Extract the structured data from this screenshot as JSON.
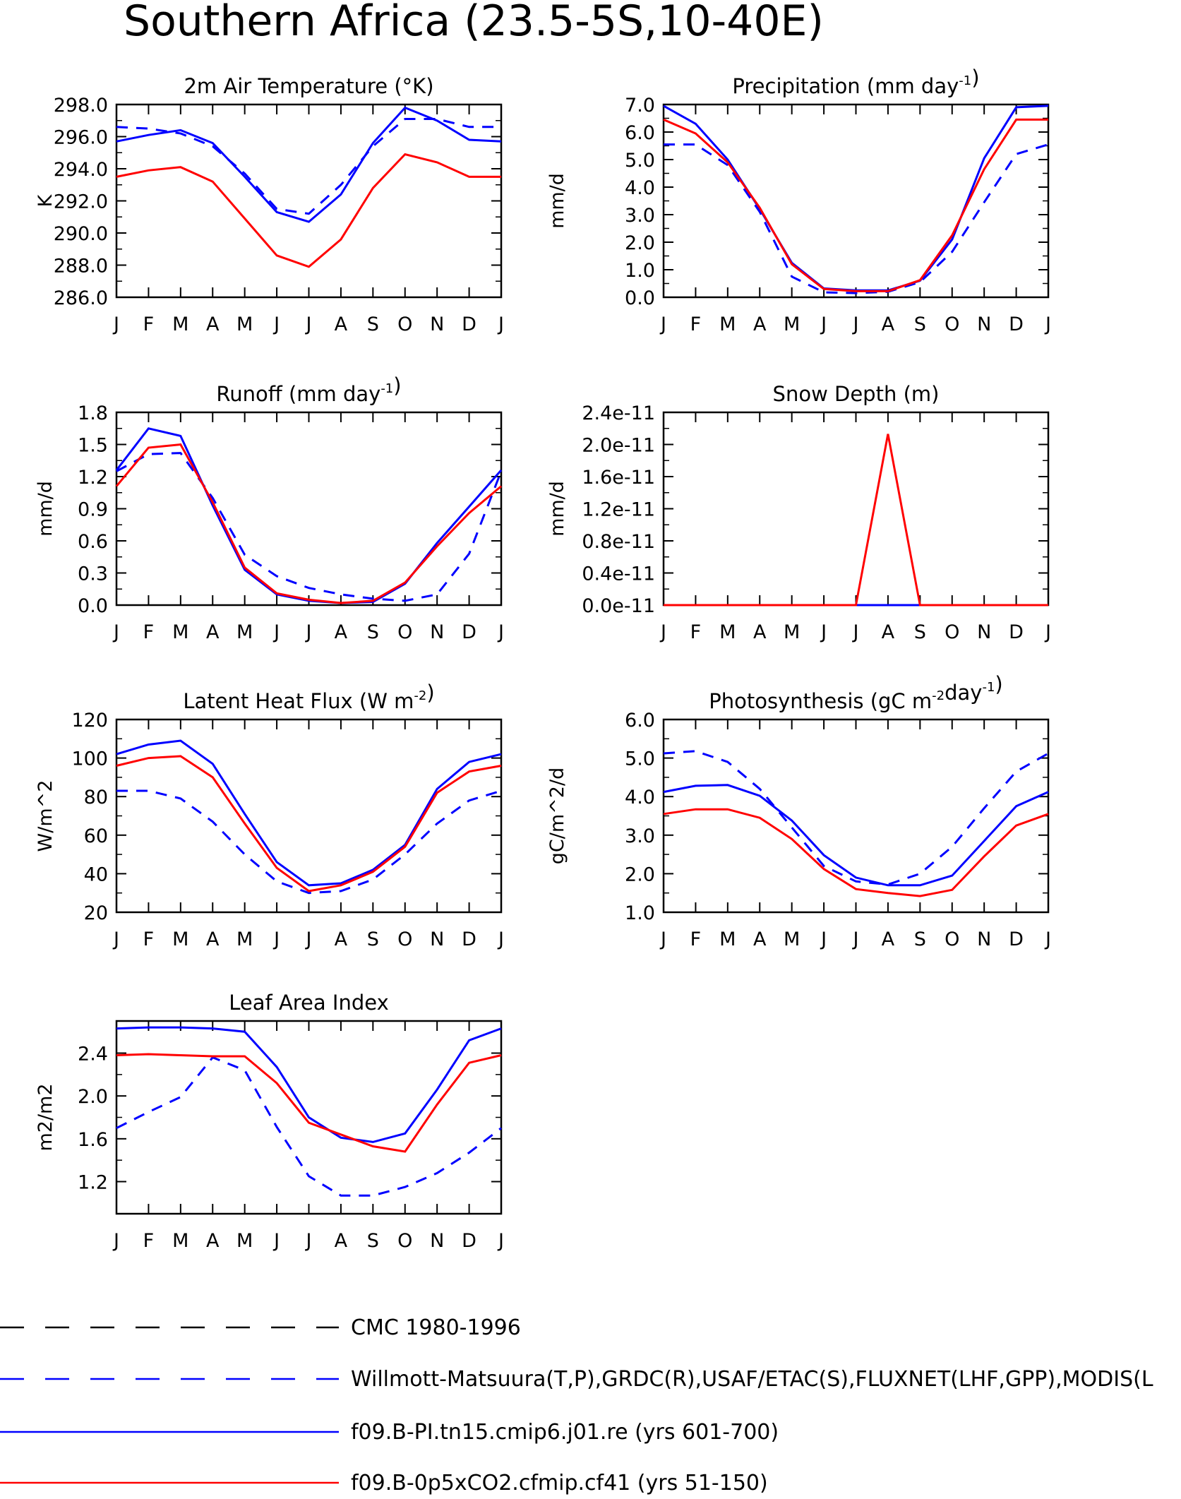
{
  "title": "Southern Africa (23.5-5S,10-40E)",
  "months": [
    "J",
    "F",
    "M",
    "A",
    "M",
    "J",
    "J",
    "A",
    "S",
    "O",
    "N",
    "D",
    "J"
  ],
  "colors": {
    "obs_a": "#000000",
    "obs_b": "#0000ff",
    "model_a": "#0000ff",
    "model_b": "#ff0000"
  },
  "legend": [
    {
      "label": "CMC 1980-1996",
      "color": "#000000",
      "dash": true
    },
    {
      "label": "Willmott-Matsuura(T,P),GRDC(R),USAF/ETAC(S),FLUXNET(LHF,GPP),MODIS(L",
      "color": "#0000ff",
      "dash": true
    },
    {
      "label": "f09.B-PI.tn15.cmip6.j01.re (yrs 601-700)",
      "color": "#0000ff",
      "dash": false
    },
    {
      "label": "f09.B-0p5xCO2.cfmip.cf41 (yrs 51-150)",
      "color": "#ff0000",
      "dash": false
    }
  ],
  "chart_data": [
    {
      "type": "line",
      "title_base": "2m Air Temperature (°K)",
      "title_sup": "",
      "ylabel": "K",
      "ylim": [
        286,
        298
      ],
      "yticks": [
        "286.0",
        "288.0",
        "290.0",
        "292.0",
        "294.0",
        "296.0",
        "298.0"
      ],
      "series": [
        {
          "style": "obs",
          "values": [
            296.6,
            296.5,
            296.2,
            295.4,
            293.7,
            291.5,
            291.2,
            293.0,
            295.4,
            297.1,
            297.1,
            296.6,
            296.6
          ]
        },
        {
          "style": "model_a",
          "values": [
            295.7,
            296.1,
            296.4,
            295.6,
            293.5,
            291.3,
            290.7,
            292.4,
            295.6,
            297.8,
            297.0,
            295.8,
            295.7
          ]
        },
        {
          "style": "model_b",
          "values": [
            293.5,
            293.9,
            294.1,
            293.2,
            290.9,
            288.6,
            287.9,
            289.6,
            292.8,
            294.9,
            294.4,
            293.5,
            293.5
          ]
        }
      ]
    },
    {
      "type": "line",
      "title_base": "Precipitation (mm day",
      "title_sup": "-1",
      "ylabel": "mm/d",
      "ylim": [
        0,
        7
      ],
      "yticks": [
        "0.0",
        "1.0",
        "2.0",
        "3.0",
        "4.0",
        "5.0",
        "6.0",
        "7.0"
      ],
      "series": [
        {
          "style": "obs",
          "values": [
            5.55,
            5.55,
            4.8,
            3.1,
            0.75,
            0.18,
            0.15,
            0.2,
            0.55,
            1.65,
            3.45,
            5.2,
            5.55
          ]
        },
        {
          "style": "model_a",
          "values": [
            6.95,
            6.3,
            5.0,
            3.2,
            1.25,
            0.32,
            0.25,
            0.25,
            0.6,
            2.1,
            5.05,
            6.9,
            6.95
          ]
        },
        {
          "style": "model_b",
          "values": [
            6.45,
            5.95,
            4.9,
            3.25,
            1.2,
            0.3,
            0.22,
            0.22,
            0.62,
            2.25,
            4.65,
            6.45,
            6.45
          ]
        }
      ]
    },
    {
      "type": "line",
      "title_base": "Runoff (mm day",
      "title_sup": "-1",
      "ylabel": "mm/d",
      "ylim": [
        0,
        1.8
      ],
      "yticks": [
        "0.0",
        "0.3",
        "0.6",
        "0.9",
        "1.2",
        "1.5",
        "1.8"
      ],
      "series": [
        {
          "style": "obs",
          "values": [
            1.25,
            1.41,
            1.42,
            1.0,
            0.47,
            0.27,
            0.16,
            0.1,
            0.06,
            0.04,
            0.1,
            0.48,
            1.25
          ]
        },
        {
          "style": "model_a",
          "values": [
            1.26,
            1.65,
            1.58,
            0.93,
            0.33,
            0.1,
            0.04,
            0.02,
            0.03,
            0.2,
            0.58,
            0.92,
            1.26
          ]
        },
        {
          "style": "model_b",
          "values": [
            1.11,
            1.47,
            1.5,
            0.96,
            0.35,
            0.11,
            0.05,
            0.02,
            0.04,
            0.21,
            0.55,
            0.86,
            1.11
          ]
        }
      ]
    },
    {
      "type": "line",
      "title_base": "Snow Depth (m)",
      "title_sup": "",
      "ylabel": "mm/d",
      "ylim": [
        0,
        2.4e-11
      ],
      "yticks": [
        "0.0e-11",
        "0.4e-11",
        "0.8e-11",
        "1.2e-11",
        "1.6e-11",
        "2.0e-11",
        "2.4e-11"
      ],
      "series": [
        {
          "style": "model_a",
          "values": [
            0,
            0,
            0,
            0,
            0,
            0,
            0,
            0,
            0,
            0,
            0,
            0,
            0
          ]
        },
        {
          "style": "model_b",
          "values": [
            0,
            0,
            0,
            0,
            0,
            0,
            0,
            2.13e-11,
            0,
            0,
            0,
            0,
            0
          ]
        }
      ]
    },
    {
      "type": "line",
      "title_base": "Latent Heat Flux (W m",
      "title_sup": "-2",
      "title_end": ")",
      "ylabel": "W/m^2",
      "ylim": [
        20,
        120
      ],
      "yticks": [
        "20",
        "40",
        "60",
        "80",
        "100",
        "120"
      ],
      "series": [
        {
          "style": "obs",
          "values": [
            83,
            83,
            79,
            67,
            50,
            36,
            30,
            31,
            37,
            50,
            66,
            78,
            83
          ]
        },
        {
          "style": "model_a",
          "values": [
            102,
            107,
            109,
            97,
            71,
            46,
            34,
            35,
            42,
            55,
            84,
            98,
            102
          ]
        },
        {
          "style": "model_b",
          "values": [
            96,
            100,
            101,
            90,
            66,
            43,
            31,
            34,
            41,
            54,
            82,
            93,
            96
          ]
        }
      ]
    },
    {
      "type": "line",
      "title_base": "Photosynthesis (gC m",
      "title_sup": "-2",
      "title_mid": "day",
      "title_sup2": "-1",
      "title_end": ")",
      "ylabel": "gC/m^2/d",
      "ylim": [
        1,
        6
      ],
      "yticks": [
        "1.0",
        "2.0",
        "3.0",
        "4.0",
        "5.0",
        "6.0"
      ],
      "series": [
        {
          "style": "obs",
          "values": [
            5.12,
            5.18,
            4.9,
            4.2,
            3.2,
            2.2,
            1.8,
            1.72,
            2.0,
            2.7,
            3.7,
            4.65,
            5.12
          ]
        },
        {
          "style": "model_a",
          "values": [
            4.12,
            4.28,
            4.3,
            4.02,
            3.38,
            2.48,
            1.9,
            1.7,
            1.7,
            1.95,
            2.85,
            3.75,
            4.12
          ]
        },
        {
          "style": "model_b",
          "values": [
            3.55,
            3.67,
            3.67,
            3.45,
            2.9,
            2.12,
            1.6,
            1.5,
            1.42,
            1.58,
            2.45,
            3.25,
            3.55
          ]
        }
      ]
    },
    {
      "type": "line",
      "title_base": "Leaf Area Index",
      "title_sup": "",
      "ylabel": "m2/m2",
      "ylim": [
        0.9,
        2.7
      ],
      "yticks": [
        "1.2",
        "1.6",
        "2.0",
        "2.4"
      ],
      "series": [
        {
          "style": "obs",
          "values": [
            1.7,
            1.85,
            1.99,
            2.36,
            2.24,
            1.71,
            1.25,
            1.07,
            1.07,
            1.15,
            1.28,
            1.47,
            1.7
          ]
        },
        {
          "style": "model_a",
          "values": [
            2.63,
            2.64,
            2.64,
            2.63,
            2.6,
            2.27,
            1.8,
            1.61,
            1.57,
            1.65,
            2.06,
            2.52,
            2.63
          ]
        },
        {
          "style": "model_b",
          "values": [
            2.38,
            2.39,
            2.38,
            2.37,
            2.37,
            2.12,
            1.75,
            1.64,
            1.53,
            1.48,
            1.92,
            2.31,
            2.38
          ]
        }
      ]
    }
  ]
}
